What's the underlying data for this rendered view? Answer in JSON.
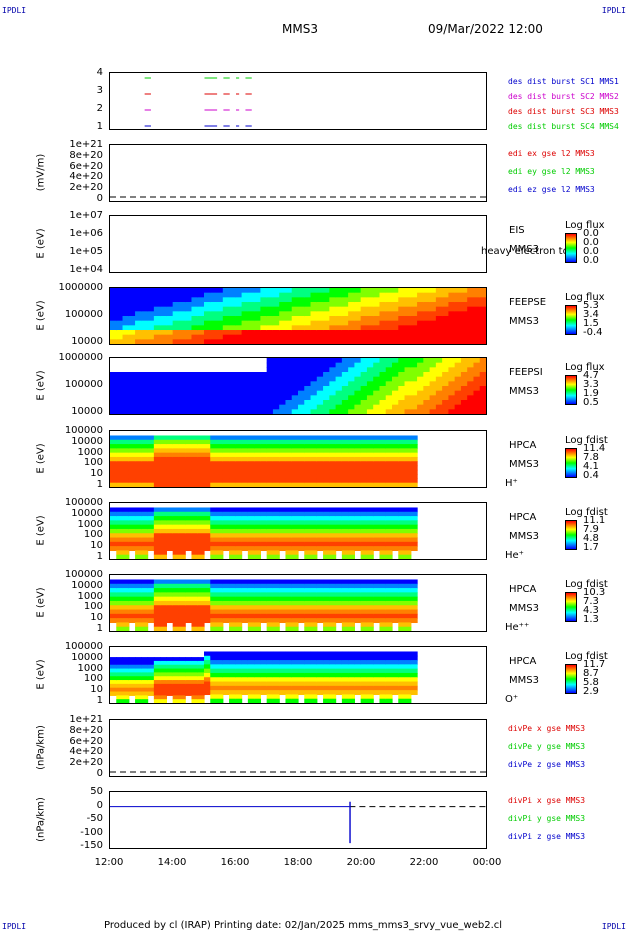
{
  "header": {
    "corner_tl": "IPDLI",
    "corner_tr": "IPDLI",
    "corner_bl": "IPDLI",
    "corner_br": "IPDLI",
    "spacecraft": "MMS3",
    "datetime": "09/Mar/2022 12:00"
  },
  "footer": {
    "text": "Produced by cl (IRAP)   Printing date: 02/Jan/2025   mms_mms3_srvy_vue_web2.cl"
  },
  "colors": {
    "sc1": "#0000cc",
    "sc2": "#cc00cc",
    "sc3": "#dd0000",
    "sc4": "#00cc00",
    "ex": "#dd0000",
    "ey": "#00cc00",
    "ez": "#0000cc"
  },
  "chart_data": [
    {
      "type": "line",
      "name": "burst",
      "yticks": [
        "4",
        "3",
        "2",
        "1"
      ],
      "legend": [
        "des dist burst SC1 MMS1",
        "des dist burst SC2 MMS2",
        "des dist burst SC3 MMS3",
        "des dist burst SC4 MMS4"
      ]
    },
    {
      "type": "line",
      "name": "edi",
      "ylabel": "(mV/m)",
      "yticks": [
        "1e+21",
        "8e+20",
        "6e+20",
        "4e+20",
        "2e+20",
        "0"
      ],
      "legend": [
        "edi ex gse l2 MMS3",
        "edi ey gse l2 MMS3",
        "edi ez gse l2 MMS3"
      ]
    },
    {
      "type": "heatmap",
      "name": "eis",
      "ylabel": "E (eV)",
      "yticks": [
        "1e+07",
        "1e+06",
        "1e+05",
        "1e+04"
      ],
      "instrument": [
        "EIS",
        "MMS3"
      ],
      "overlay": "heavy electron to",
      "colorbar": {
        "title": "Log flux",
        "values": [
          "0.0",
          "0.0",
          "0.0",
          "0.0"
        ]
      }
    },
    {
      "type": "heatmap",
      "name": "feepse",
      "ylabel": "E (eV)",
      "yticks": [
        "1000000",
        "100000",
        "10000"
      ],
      "instrument": [
        "FEEPSE",
        "MMS3"
      ],
      "colorbar": {
        "title": "Log flux",
        "values": [
          "5.3",
          "3.4",
          "1.5",
          "-0.4"
        ]
      }
    },
    {
      "type": "heatmap",
      "name": "feepsi",
      "ylabel": "E (eV)",
      "yticks": [
        "1000000",
        "100000",
        "10000"
      ],
      "instrument": [
        "FEEPSI",
        "MMS3"
      ],
      "colorbar": {
        "title": "Log flux",
        "values": [
          "4.7",
          "3.3",
          "1.9",
          "0.5"
        ]
      }
    },
    {
      "type": "heatmap",
      "name": "hpca-h",
      "ylabel": "E (eV)",
      "yticks": [
        "100000",
        "10000",
        "1000",
        "100",
        "10",
        "1"
      ],
      "instrument": [
        "HPCA",
        "MMS3",
        "H⁺"
      ],
      "colorbar": {
        "title": "Log fdist",
        "values": [
          "11.4",
          "7.8",
          "4.1",
          "0.4"
        ]
      }
    },
    {
      "type": "heatmap",
      "name": "hpca-he",
      "ylabel": "E (eV)",
      "yticks": [
        "100000",
        "10000",
        "1000",
        "100",
        "10",
        "1"
      ],
      "instrument": [
        "HPCA",
        "MMS3",
        "He⁺"
      ],
      "colorbar": {
        "title": "Log fdist",
        "values": [
          "11.1",
          "7.9",
          "4.8",
          "1.7"
        ]
      }
    },
    {
      "type": "heatmap",
      "name": "hpca-hepp",
      "ylabel": "E (eV)",
      "yticks": [
        "100000",
        "10000",
        "1000",
        "100",
        "10",
        "1"
      ],
      "instrument": [
        "HPCA",
        "MMS3",
        "He⁺⁺"
      ],
      "colorbar": {
        "title": "Log fdist",
        "values": [
          "10.3",
          "7.3",
          "4.3",
          "1.3"
        ]
      }
    },
    {
      "type": "heatmap",
      "name": "hpca-o",
      "ylabel": "E (eV)",
      "yticks": [
        "100000",
        "10000",
        "1000",
        "100",
        "10",
        "1"
      ],
      "instrument": [
        "HPCA",
        "MMS3",
        "O⁺"
      ],
      "colorbar": {
        "title": "Log fdist",
        "values": [
          "11.7",
          "8.7",
          "5.8",
          "2.9"
        ]
      }
    },
    {
      "type": "line",
      "name": "divpe",
      "ylabel": "(nPa/km)",
      "yticks": [
        "1e+21",
        "8e+20",
        "6e+20",
        "4e+20",
        "2e+20",
        "0"
      ],
      "legend": [
        "divPe x gse MMS3",
        "divPe y gse MMS3",
        "divPe z gse MMS3"
      ]
    },
    {
      "type": "line",
      "name": "divpi",
      "ylabel": "(nPa/km)",
      "yticks": [
        "50",
        "0",
        "-50",
        "-100",
        "-150"
      ],
      "ylim": [
        -170,
        60
      ],
      "legend": [
        "divPi x gse MMS3",
        "divPi y gse MMS3",
        "divPi z gse MMS3"
      ],
      "spike": {
        "x": "19:37",
        "ymin": -150,
        "ymax": 20
      }
    }
  ],
  "xaxis": {
    "ticks": [
      "12:00",
      "14:00",
      "16:00",
      "18:00",
      "20:00",
      "22:00",
      "00:00"
    ]
  }
}
